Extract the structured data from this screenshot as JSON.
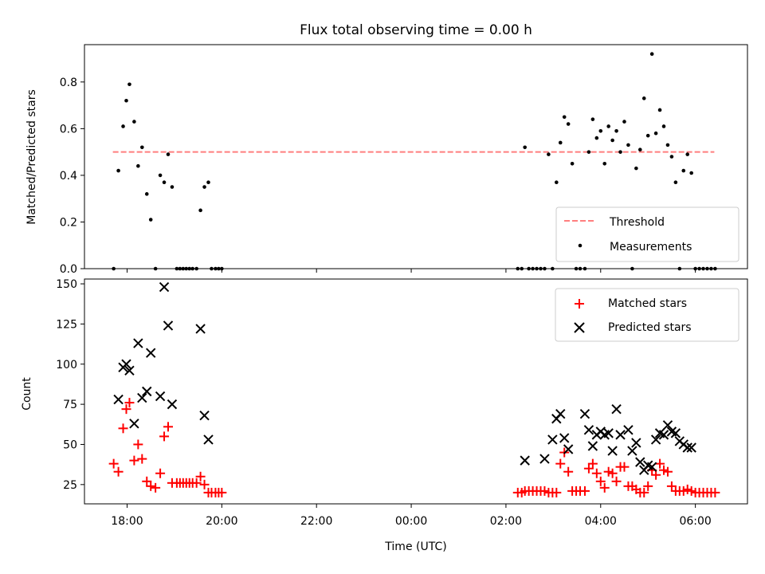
{
  "figure_title": "Flux total observing time = 0.00 h",
  "chart_data": [
    {
      "type": "scatter",
      "ylabel": "Matched/Predicted stars",
      "ylim": [
        0,
        0.96
      ],
      "yticks": [
        0.0,
        0.2,
        0.4,
        0.6,
        0.8
      ],
      "ytick_labels": [
        "0.0",
        "0.2",
        "0.4",
        "0.6",
        "0.8"
      ],
      "xlim_hours": [
        17.1,
        31.1
      ],
      "threshold": 0.5,
      "threshold_x_hours": [
        17.7,
        30.4
      ],
      "legend": [
        "Threshold",
        "Measurements"
      ],
      "legend_position": "lower-right",
      "series": [
        {
          "name": "Measurements",
          "color": "#000000",
          "x": [
            "17:43",
            "17:49",
            "17:55",
            "17:59",
            "18:03",
            "18:09",
            "18:14",
            "18:19",
            "18:25",
            "18:30",
            "18:36",
            "18:42",
            "18:47",
            "18:52",
            "18:57",
            "19:03",
            "19:07",
            "19:11",
            "19:15",
            "19:19",
            "19:23",
            "19:28",
            "19:33",
            "19:38",
            "19:43",
            "19:47",
            "19:52",
            "19:56",
            "20:00",
            "02:15",
            "02:20",
            "02:24",
            "02:29",
            "02:34",
            "02:39",
            "02:44",
            "02:49",
            "02:54",
            "02:59",
            "03:04",
            "03:09",
            "03:14",
            "03:19",
            "03:24",
            "03:29",
            "03:34",
            "03:40",
            "03:45",
            "03:50",
            "03:55",
            "04:00",
            "04:05",
            "04:10",
            "04:15",
            "04:20",
            "04:25",
            "04:30",
            "04:35",
            "04:40",
            "04:45",
            "04:50",
            "04:55",
            "05:00",
            "05:05",
            "05:10",
            "05:15",
            "05:20",
            "05:25",
            "05:30",
            "05:35",
            "05:40",
            "05:45",
            "05:50",
            "05:55",
            "06:00",
            "06:05",
            "06:10",
            "06:15",
            "06:20",
            "06:25"
          ],
          "y": [
            0.0,
            0.42,
            0.61,
            0.72,
            0.79,
            0.63,
            0.44,
            0.52,
            0.32,
            0.21,
            0.0,
            0.4,
            0.37,
            0.49,
            0.35,
            0.0,
            0.0,
            0.0,
            0.0,
            0.0,
            0.0,
            0.0,
            0.25,
            0.35,
            0.37,
            0.0,
            0.0,
            0.0,
            0.0,
            0.0,
            0.0,
            0.52,
            0.0,
            0.0,
            0.0,
            0.0,
            0.0,
            0.49,
            0.0,
            0.37,
            0.54,
            0.65,
            0.62,
            0.45,
            0.0,
            0.0,
            0.0,
            0.5,
            0.64,
            0.56,
            0.59,
            0.45,
            0.61,
            0.55,
            0.59,
            0.5,
            0.63,
            0.53,
            0.0,
            0.43,
            0.51,
            0.73,
            0.57,
            0.92,
            0.58,
            0.68,
            0.61,
            0.53,
            0.48,
            0.37,
            0.0,
            0.42,
            0.49,
            0.41,
            0.0,
            0.0,
            0.0,
            0.0,
            0.0,
            0.0
          ]
        }
      ]
    },
    {
      "type": "scatter",
      "ylabel": "Count",
      "xlabel": "Time (UTC)",
      "ylim": [
        13,
        153
      ],
      "yticks": [
        25,
        50,
        75,
        100,
        125,
        150
      ],
      "ytick_labels": [
        "25",
        "50",
        "75",
        "100",
        "125",
        "150"
      ],
      "xlim_hours": [
        17.1,
        31.1
      ],
      "xticks_hours": [
        18,
        20,
        22,
        24,
        26,
        28,
        30
      ],
      "xtick_labels": [
        "18:00",
        "20:00",
        "22:00",
        "00:00",
        "02:00",
        "04:00",
        "06:00"
      ],
      "legend": [
        "Matched stars",
        "Predicted stars"
      ],
      "legend_position": "upper-right",
      "series": [
        {
          "name": "Matched stars",
          "color": "#ff0000",
          "marker": "plus",
          "x": [
            "17:43",
            "17:49",
            "17:55",
            "17:59",
            "18:03",
            "18:09",
            "18:14",
            "18:19",
            "18:25",
            "18:30",
            "18:36",
            "18:42",
            "18:47",
            "18:52",
            "18:57",
            "19:03",
            "19:07",
            "19:11",
            "19:15",
            "19:19",
            "19:23",
            "19:28",
            "19:33",
            "19:38",
            "19:43",
            "19:47",
            "19:52",
            "19:56",
            "20:00",
            "02:15",
            "02:20",
            "02:24",
            "02:29",
            "02:34",
            "02:39",
            "02:44",
            "02:49",
            "02:54",
            "02:59",
            "03:04",
            "03:09",
            "03:14",
            "03:19",
            "03:24",
            "03:29",
            "03:34",
            "03:40",
            "03:45",
            "03:50",
            "03:55",
            "04:00",
            "04:05",
            "04:10",
            "04:15",
            "04:20",
            "04:25",
            "04:30",
            "04:35",
            "04:40",
            "04:45",
            "04:50",
            "04:55",
            "05:00",
            "05:05",
            "05:10",
            "05:15",
            "05:20",
            "05:25",
            "05:30",
            "05:35",
            "05:40",
            "05:45",
            "05:50",
            "05:55",
            "06:00",
            "06:05",
            "06:10",
            "06:15",
            "06:20",
            "06:25"
          ],
          "y": [
            38,
            33,
            60,
            72,
            76,
            40,
            50,
            41,
            27,
            24,
            23,
            32,
            55,
            61,
            26,
            26,
            26,
            26,
            26,
            26,
            26,
            26,
            30,
            25,
            20,
            20,
            20,
            20,
            20,
            20,
            20,
            21,
            21,
            21,
            21,
            21,
            21,
            20,
            20,
            20,
            38,
            45,
            33,
            21,
            21,
            21,
            21,
            35,
            38,
            32,
            27,
            23,
            33,
            32,
            27,
            36,
            36,
            24,
            24,
            22,
            20,
            20,
            24,
            34,
            31,
            38,
            34,
            33,
            24,
            21,
            21,
            21,
            22,
            21,
            20,
            20,
            20,
            20,
            20,
            20
          ]
        },
        {
          "name": "Predicted stars",
          "color": "#000000",
          "marker": "x",
          "x": [
            "17:49",
            "17:55",
            "17:59",
            "18:03",
            "18:09",
            "18:14",
            "18:19",
            "18:25",
            "18:30",
            "18:42",
            "18:47",
            "18:52",
            "18:57",
            "19:33",
            "19:38",
            "19:43",
            "02:24",
            "02:49",
            "02:59",
            "03:04",
            "03:09",
            "03:14",
            "03:19",
            "03:40",
            "03:45",
            "03:50",
            "03:55",
            "04:00",
            "04:05",
            "04:10",
            "04:15",
            "04:20",
            "04:25",
            "04:35",
            "04:40",
            "04:45",
            "04:50",
            "04:55",
            "05:00",
            "05:05",
            "05:10",
            "05:15",
            "05:20",
            "05:25",
            "05:30",
            "05:35",
            "05:40",
            "05:45",
            "05:50",
            "05:55"
          ],
          "y": [
            78,
            98,
            100,
            96,
            63,
            113,
            79,
            83,
            107,
            80,
            148,
            124,
            75,
            122,
            68,
            53,
            40,
            41,
            53,
            66,
            69,
            54,
            47,
            69,
            59,
            49,
            56,
            58,
            56,
            57,
            46,
            72,
            56,
            59,
            46,
            51,
            39,
            34,
            37,
            36,
            53,
            57,
            56,
            62,
            58,
            57,
            52,
            50,
            48,
            48
          ]
        }
      ]
    }
  ]
}
